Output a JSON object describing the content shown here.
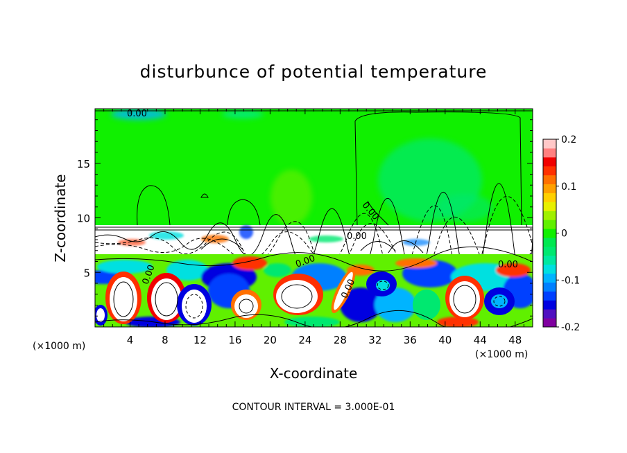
{
  "chart_data": {
    "type": "heatmap",
    "title": "disturbunce of potential temperature",
    "xlabel": "X-coordinate",
    "ylabel": "Z-coordinate",
    "x_unit": "(×1000 m)",
    "z_unit": "(×1000 m)",
    "xlim": [
      0,
      50
    ],
    "ylim": [
      0,
      20
    ],
    "x_ticks": [
      "4",
      "8",
      "12",
      "16",
      "20",
      "24",
      "28",
      "32",
      "36",
      "40",
      "44",
      "48"
    ],
    "x_tick_values": [
      4,
      8,
      12,
      16,
      20,
      24,
      28,
      32,
      36,
      40,
      44,
      48
    ],
    "y_ticks": [
      "5",
      "10",
      "15"
    ],
    "y_tick_values": [
      5,
      10,
      15
    ],
    "colorbar": {
      "range": [
        -0.2,
        0.2
      ],
      "tick_labels": [
        "0.2",
        "0.1",
        "0",
        "-0.1",
        "-0.2"
      ],
      "tick_values": [
        0.2,
        0.1,
        0,
        -0.1,
        -0.2
      ],
      "colors": [
        "#8000a0",
        "#5010c0",
        "#0000e0",
        "#0040ff",
        "#0080ff",
        "#00b4ff",
        "#00e0e0",
        "#00e8a0",
        "#00e870",
        "#00e850",
        "#10f000",
        "#60f000",
        "#a0f000",
        "#e8f000",
        "#ffd000",
        "#ffa000",
        "#ff7000",
        "#ff3000",
        "#f00000",
        "#ff8080",
        "#ffc8c8"
      ]
    },
    "contour_labels": [
      "0.00",
      "0.00",
      "0.00",
      "0.00",
      "0.00",
      "0.00",
      "0.00"
    ],
    "annotation": "CONTOUR INTERVAL = 3.000E-01",
    "upper_layer_value": 0,
    "regions": [
      {
        "kind": "warm",
        "x": [
          1.5,
          4.5
        ],
        "z": [
          0.5,
          4.5
        ]
      },
      {
        "kind": "warm",
        "x": [
          7,
          10
        ],
        "z": [
          0.5,
          4.5
        ]
      },
      {
        "kind": "warm",
        "x": [
          16,
          19
        ],
        "z": [
          1.5,
          4
        ]
      },
      {
        "kind": "warm",
        "x": [
          21,
          25
        ],
        "z": [
          1.5,
          5
        ]
      },
      {
        "kind": "warm",
        "x": [
          41.5,
          45
        ],
        "z": [
          0.5,
          4
        ]
      },
      {
        "kind": "cold",
        "x": [
          11,
          14.5
        ],
        "z": [
          1,
          5
        ]
      },
      {
        "kind": "cold",
        "x": [
          32,
          36
        ],
        "z": [
          1,
          4
        ]
      },
      {
        "kind": "cold",
        "x": [
          37,
          41
        ],
        "z": [
          2,
          6
        ]
      },
      {
        "kind": "cold",
        "x": [
          45,
          48.5
        ],
        "z": [
          1,
          3
        ]
      },
      {
        "kind": "cold",
        "x": [
          1,
          3.5
        ],
        "z": [
          4,
          5.5
        ]
      }
    ]
  }
}
